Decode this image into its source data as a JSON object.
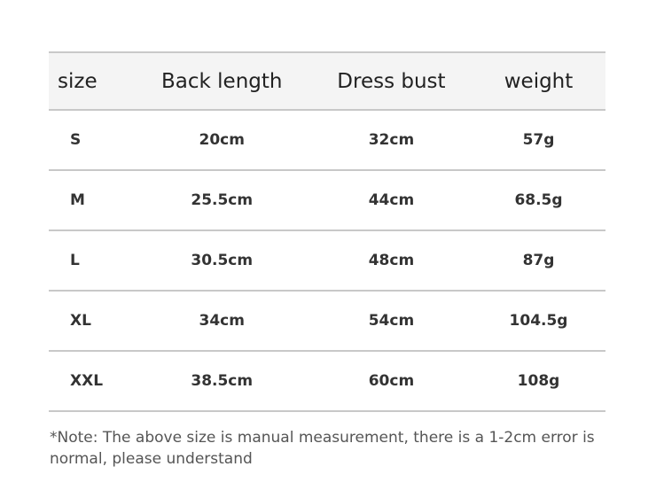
{
  "table": {
    "headers": [
      "size",
      "Back length",
      "Dress bust",
      "weight"
    ],
    "rows": [
      [
        "S",
        "20cm",
        "32cm",
        "57g"
      ],
      [
        "M",
        "25.5cm",
        "44cm",
        "68.5g"
      ],
      [
        "L",
        "30.5cm",
        "48cm",
        "87g"
      ],
      [
        "XL",
        "34cm",
        "54cm",
        "104.5g"
      ],
      [
        "XXL",
        "38.5cm",
        "60cm",
        "108g"
      ]
    ]
  },
  "note": "*Note: The above size is manual measurement, there is a 1-2cm error is normal, please understand"
}
